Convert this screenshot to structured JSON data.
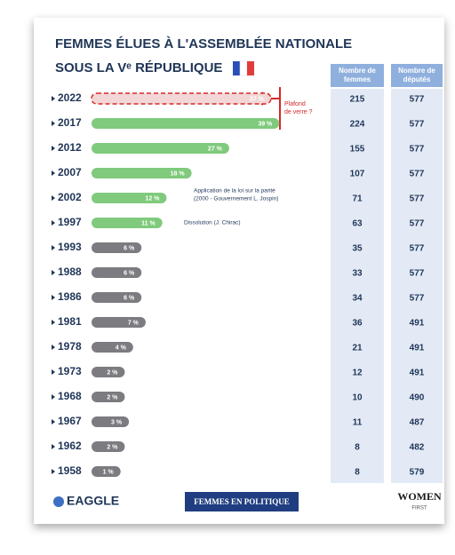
{
  "chart_data": {
    "type": "bar",
    "title": [
      "FEMMES ÉLUES À L'ASSEMBLÉE NATIONALE",
      "SOUS LA Vᵉ RÉPUBLIQUE"
    ],
    "categories": [
      "2022",
      "2017",
      "2012",
      "2007",
      "2002",
      "1997",
      "1993",
      "1988",
      "1986",
      "1981",
      "1978",
      "1973",
      "1968",
      "1967",
      "1962",
      "1958"
    ],
    "values": [
      37,
      39,
      27,
      18,
      12,
      11,
      6,
      6,
      6,
      7,
      4,
      2,
      2,
      3,
      2,
      1
    ],
    "value_labels": [
      "37 %",
      "39 %",
      "27 %",
      "18 %",
      "12 %",
      "11 %",
      "6 %",
      "6 %",
      "6 %",
      "7 %",
      "4 %",
      "2 %",
      "2 %",
      "3 %",
      "2 %",
      "1 %"
    ],
    "colors": [
      "#f3d6d6",
      "#7fca7c",
      "#7fca7c",
      "#7fca7c",
      "#7fca7c",
      "#7fca7c",
      "#7b7b80",
      "#7b7b80",
      "#7b7b80",
      "#7b7b80",
      "#7b7b80",
      "#7b7b80",
      "#7b7b80",
      "#7b7b80",
      "#7b7b80",
      "#7b7b80"
    ],
    "outline_colors": [
      "#d62828",
      null,
      null,
      null,
      null,
      null,
      null,
      null,
      null,
      null,
      null,
      null,
      null,
      null,
      null,
      null
    ],
    "columns": [
      {
        "header": [
          "Nombre de",
          "femmes"
        ],
        "values": [
          215,
          224,
          155,
          107,
          71,
          63,
          35,
          33,
          34,
          36,
          21,
          12,
          10,
          11,
          8,
          8
        ]
      },
      {
        "header": [
          "Nombre de",
          "députés"
        ],
        "values": [
          577,
          577,
          577,
          577,
          577,
          577,
          577,
          577,
          577,
          491,
          491,
          491,
          490,
          487,
          482,
          579
        ]
      }
    ],
    "annotations": {
      "plafond": [
        "Plafond",
        "de verre ?"
      ],
      "parite": [
        "Application de la loi sur la parité",
        "(2000 - Gouvernement L. Jospin)"
      ],
      "dissolution": "Dissolution (J. Chirac)"
    },
    "footer": {
      "left": "EAGGLE",
      "center": "FEMMES EN POLITIQUE",
      "right": "WOMEN",
      "right_sub": "FIRST"
    }
  }
}
